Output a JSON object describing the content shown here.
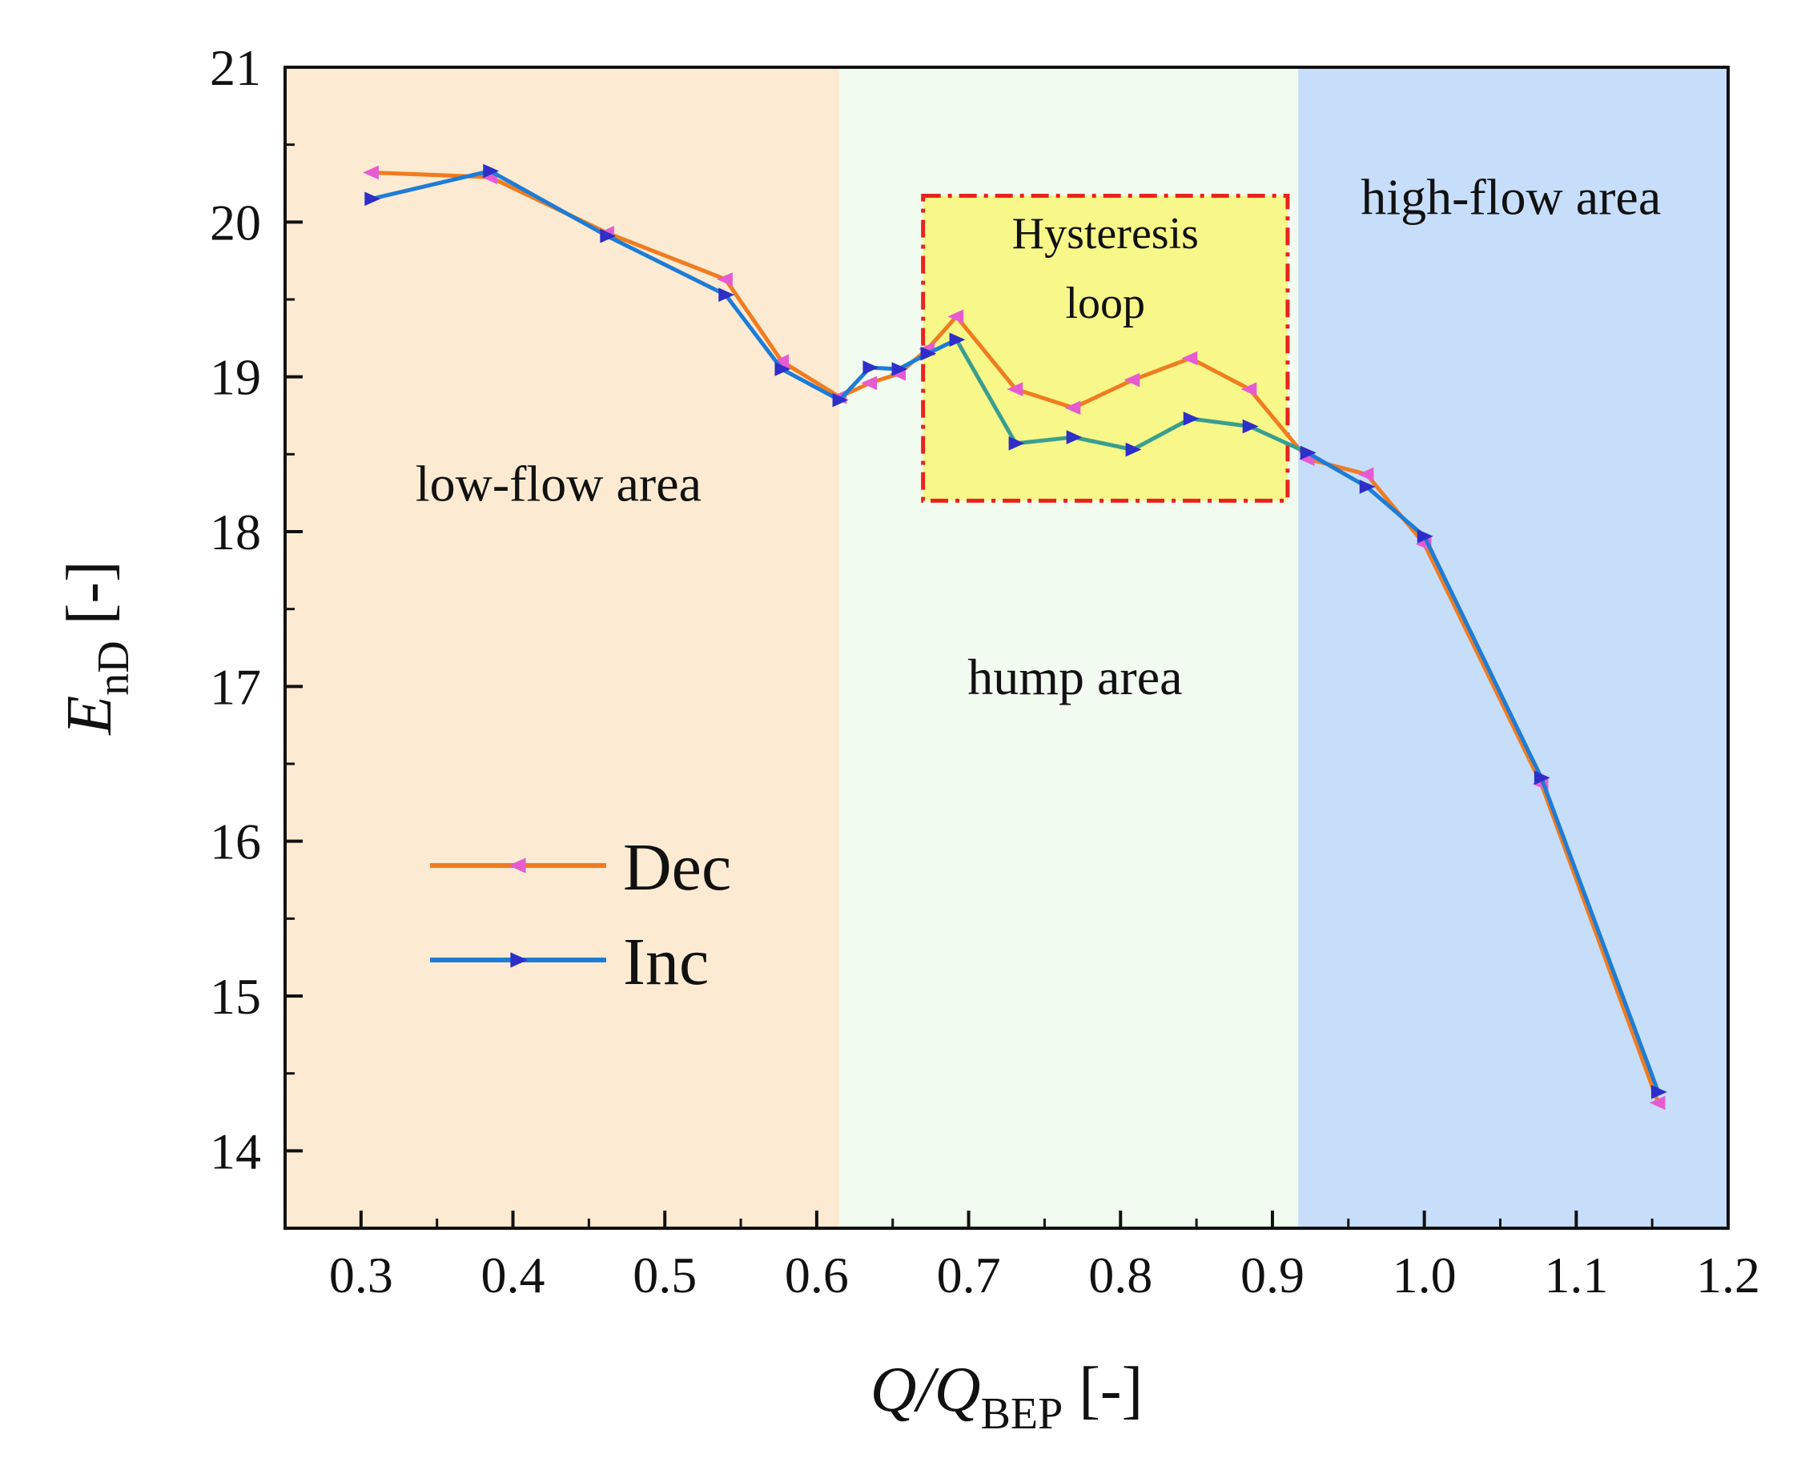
{
  "chart_data": {
    "type": "line",
    "xlabel_main": "Q/Q",
    "xlabel_sub": "BEP",
    "xlabel_unit": " [-]",
    "ylabel_main": "E",
    "ylabel_sub": "nD",
    "ylabel_unit": " [-]",
    "xlim": [
      0.25,
      1.2
    ],
    "ylim": [
      13.5,
      21
    ],
    "xticks": [
      0.3,
      0.4,
      0.5,
      0.6,
      0.7,
      0.8,
      0.9,
      1.0,
      1.1,
      1.2
    ],
    "xtick_labels": [
      "0.3",
      "0.4",
      "0.5",
      "0.6",
      "0.7",
      "0.8",
      "0.9",
      "1.0",
      "1.1",
      "1.2"
    ],
    "yticks": [
      14,
      15,
      16,
      17,
      18,
      19,
      20,
      21
    ],
    "ytick_labels": [
      "14",
      "15",
      "16",
      "17",
      "18",
      "19",
      "20",
      "21"
    ],
    "regions": [
      {
        "name": "low-flow area",
        "x0": 0.25,
        "x1": 0.615,
        "color": "#fcebd2"
      },
      {
        "name": "hump area",
        "x0": 0.615,
        "x1": 0.917,
        "color": "#f2fbf0"
      },
      {
        "name": "high-flow area",
        "x0": 0.917,
        "x1": 1.2,
        "color": "#c7defa"
      }
    ],
    "region_labels": [
      {
        "text": "low-flow area",
        "x": 0.43,
        "y": 18.2
      },
      {
        "text": "hump area",
        "x": 0.77,
        "y": 16.95
      },
      {
        "text": "high-flow area",
        "x": 1.057,
        "y": 20.05
      }
    ],
    "hysteresis": {
      "x0": 0.67,
      "x1": 0.91,
      "y0": 18.2,
      "y1": 20.17,
      "fill": "#f7f78a",
      "stroke": "#e8231e",
      "label_line1": "Hysteresis",
      "label_line2": "loop",
      "label_x": 0.79,
      "label_y1": 19.83,
      "label_y2": 19.38
    },
    "series": [
      {
        "name": "Dec",
        "line_color": "#f07c20",
        "marker_color": "#e65bd2",
        "marker": "triangle-left",
        "x": [
          0.307,
          0.385,
          0.462,
          0.54,
          0.577,
          0.615,
          0.635,
          0.654,
          0.673,
          0.692,
          0.731,
          0.769,
          0.808,
          0.846,
          0.885,
          0.923,
          0.962,
          1.0,
          1.077,
          1.154
        ],
        "y": [
          20.32,
          20.29,
          19.93,
          19.63,
          19.1,
          18.87,
          18.96,
          19.02,
          19.18,
          19.39,
          18.92,
          18.8,
          18.98,
          19.12,
          18.92,
          18.47,
          18.37,
          17.92,
          16.37,
          14.31
        ]
      },
      {
        "name": "Inc",
        "line_color": "#1e7cd6",
        "hump_line_color": "#3a9e8e",
        "marker_color": "#2e2ec8",
        "marker": "triangle-right",
        "x": [
          0.307,
          0.385,
          0.462,
          0.54,
          0.577,
          0.615,
          0.635,
          0.654,
          0.673,
          0.692,
          0.731,
          0.769,
          0.808,
          0.846,
          0.885,
          0.923,
          0.962,
          1.0,
          1.077,
          1.154
        ],
        "y": [
          20.15,
          20.33,
          19.91,
          19.53,
          19.05,
          18.85,
          19.06,
          19.05,
          19.15,
          19.24,
          18.57,
          18.61,
          18.53,
          18.73,
          18.68,
          18.51,
          18.29,
          17.97,
          16.41,
          14.38
        ]
      }
    ],
    "legend": {
      "position": "lower-left",
      "entries": [
        "Dec",
        "Inc"
      ]
    }
  }
}
